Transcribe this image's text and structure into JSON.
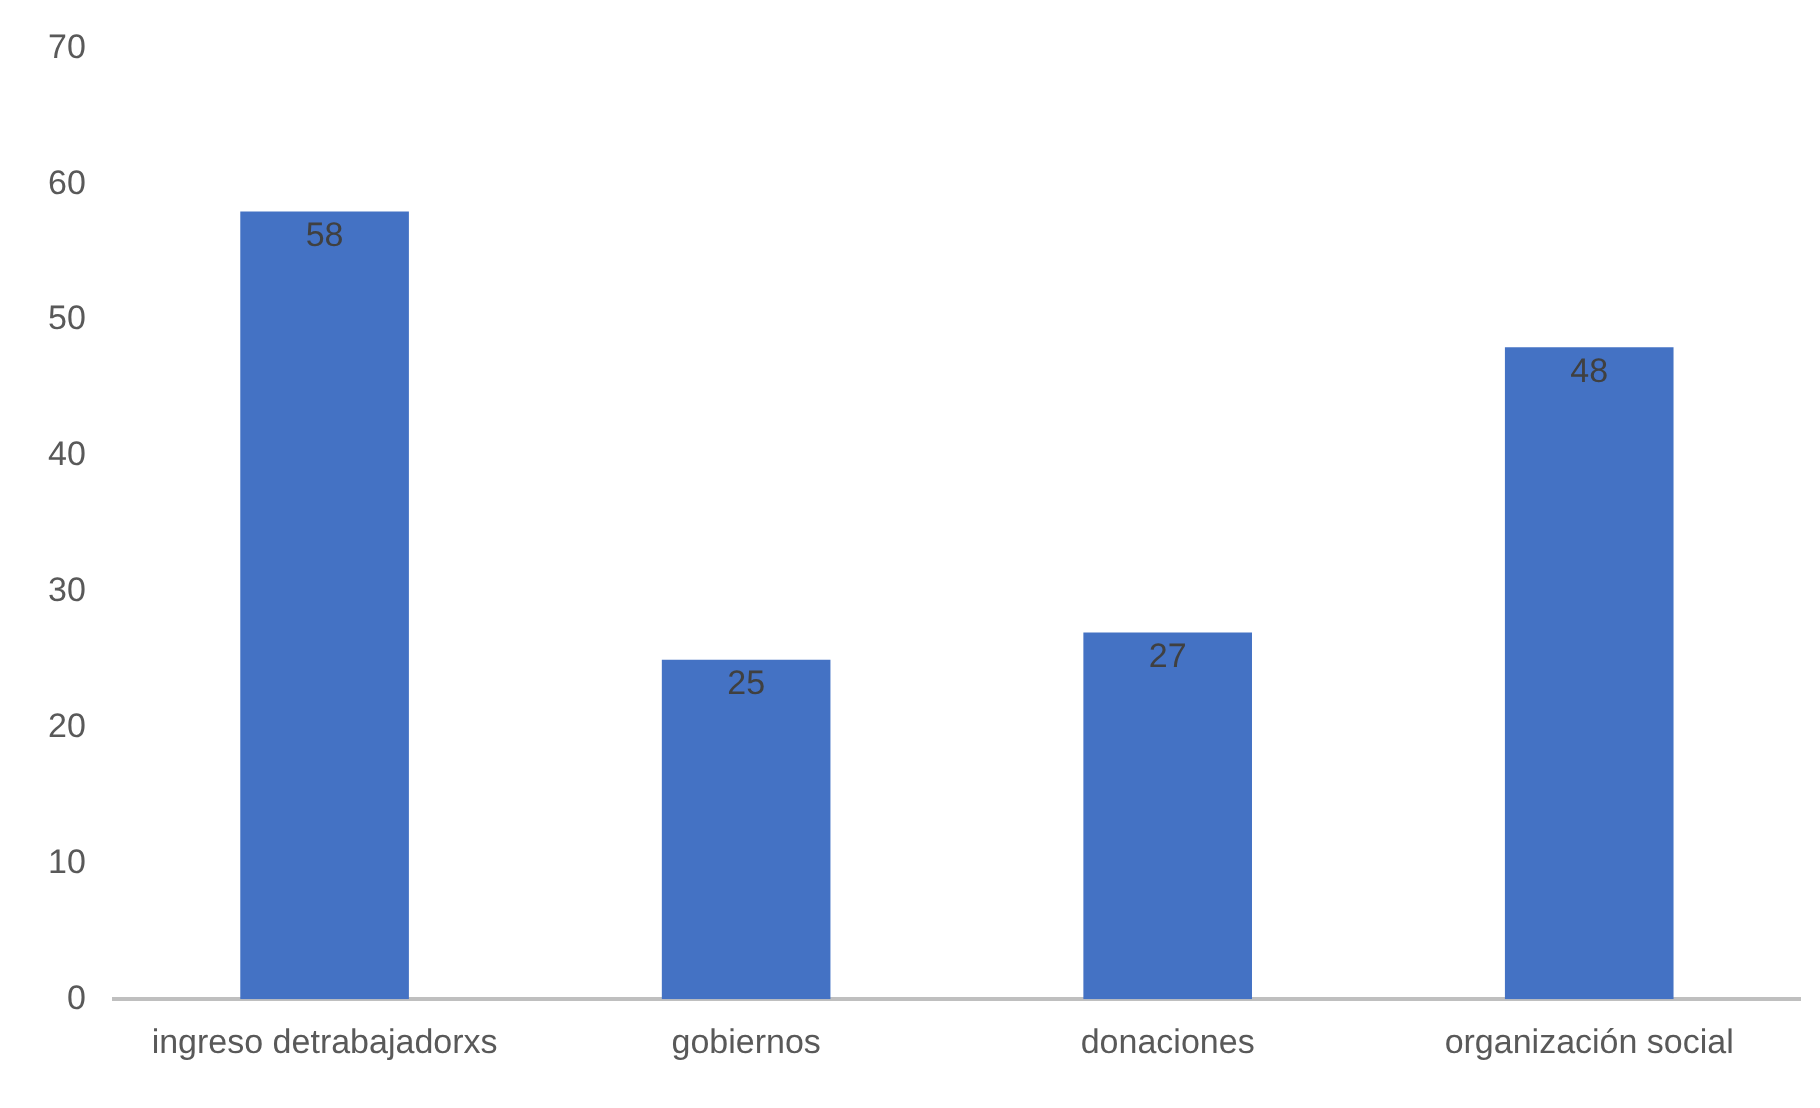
{
  "chart_data": {
    "type": "bar",
    "categories": [
      "ingreso detrabajadorxs",
      "gobiernos",
      "donaciones",
      "organización social"
    ],
    "values": [
      58,
      25,
      27,
      48
    ],
    "color": "#4472c4",
    "ylim": [
      0,
      70
    ],
    "yticks": [
      0,
      10,
      20,
      30,
      40,
      50,
      60,
      70
    ],
    "grid": false,
    "data_labels": true,
    "legend": false
  }
}
